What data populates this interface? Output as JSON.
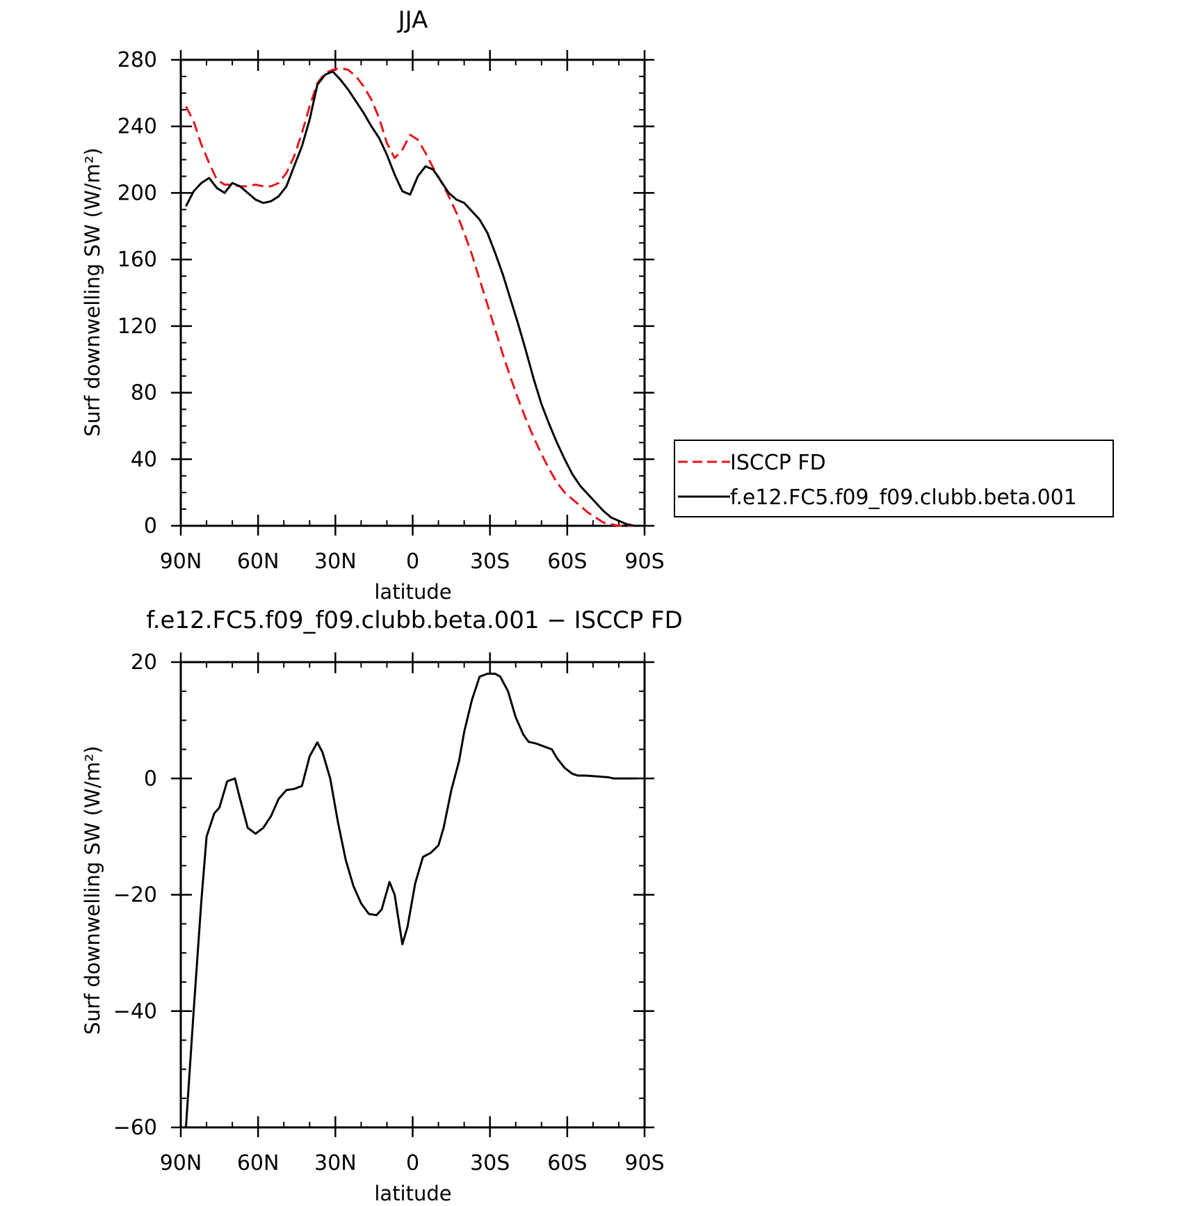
{
  "chart_data": [
    {
      "type": "line",
      "title": "JJA",
      "xlabel": "latitude",
      "ylabel": "Surf downwelling SW (W/m²)",
      "xlim": [
        90,
        -90
      ],
      "ylim": [
        0,
        280
      ],
      "x_ticks": [
        {
          "value": 90,
          "label": "90N"
        },
        {
          "value": 60,
          "label": "60N"
        },
        {
          "value": 30,
          "label": "30N"
        },
        {
          "value": 0,
          "label": "0"
        },
        {
          "value": -30,
          "label": "30S"
        },
        {
          "value": -60,
          "label": "60S"
        },
        {
          "value": -90,
          "label": "90S"
        }
      ],
      "y_ticks": [
        {
          "value": 0,
          "label": "0"
        },
        {
          "value": 40,
          "label": "40"
        },
        {
          "value": 80,
          "label": "80"
        },
        {
          "value": 120,
          "label": "120"
        },
        {
          "value": 160,
          "label": "160"
        },
        {
          "value": 200,
          "label": "200"
        },
        {
          "value": 240,
          "label": "240"
        },
        {
          "value": 280,
          "label": "280"
        }
      ],
      "legend_position": "right",
      "series": [
        {
          "name": "ISCCP FD",
          "color": "#e8141b",
          "dash": true,
          "x": [
            88,
            85,
            82,
            79,
            76,
            73,
            70,
            67,
            64,
            61,
            58,
            55,
            52,
            49,
            46,
            43,
            40,
            37,
            34,
            31,
            28,
            25,
            22,
            19,
            16,
            13,
            10,
            7,
            4,
            1,
            -2,
            -5,
            -8,
            -11,
            -14,
            -17,
            -20,
            -23,
            -26,
            -29,
            -32,
            -35,
            -38,
            -41,
            -44,
            -47,
            -50,
            -53,
            -56,
            -59,
            -62,
            -65,
            -68,
            -71,
            -74,
            -77,
            -80,
            -83,
            -86,
            -89
          ],
          "y": [
            252,
            243,
            229,
            218,
            208,
            205,
            205,
            204,
            204,
            205,
            204,
            204,
            206,
            212,
            222,
            236,
            252,
            266,
            272,
            274,
            275,
            274,
            270,
            264,
            256,
            245,
            230,
            221,
            226,
            235,
            232,
            224,
            215,
            207,
            198,
            188,
            176,
            163,
            148,
            133,
            118,
            103,
            89,
            76,
            64,
            53,
            43,
            34,
            26,
            20,
            16,
            12,
            8,
            5,
            2,
            1,
            0,
            0,
            0,
            0
          ]
        },
        {
          "name": "f.e12.FC5.f09_f09.clubb.beta.001",
          "color": "#000000",
          "dash": false,
          "x": [
            88,
            85,
            82,
            79,
            76,
            73,
            70,
            67,
            64,
            61,
            58,
            55,
            52,
            49,
            46,
            43,
            40,
            37,
            34,
            31,
            28,
            25,
            22,
            19,
            16,
            13,
            10,
            7,
            4,
            1,
            -2,
            -5,
            -8,
            -11,
            -14,
            -17,
            -20,
            -23,
            -26,
            -29,
            -32,
            -35,
            -38,
            -41,
            -44,
            -47,
            -50,
            -53,
            -56,
            -59,
            -62,
            -65,
            -68,
            -71,
            -74,
            -77,
            -80,
            -83,
            -86,
            -89
          ],
          "y": [
            192,
            201,
            206,
            209,
            203,
            200,
            206,
            204,
            200,
            196,
            194,
            195,
            198,
            204,
            216,
            228,
            244,
            265,
            271,
            273,
            268,
            262,
            255,
            248,
            240,
            233,
            223,
            211,
            201,
            199,
            210,
            216,
            214,
            207,
            200,
            196,
            194,
            189,
            184,
            176,
            164,
            151,
            136,
            121,
            105,
            88,
            73,
            61,
            50,
            40,
            31,
            24,
            19,
            14,
            9,
            5,
            3,
            1,
            0,
            0
          ]
        }
      ]
    },
    {
      "type": "line",
      "title": "f.e12.FC5.f09_f09.clubb.beta.001 − ISCCP FD",
      "xlabel": "latitude",
      "ylabel": "Surf downwelling SW (W/m²)",
      "xlim": [
        90,
        -90
      ],
      "ylim": [
        -60,
        20
      ],
      "x_ticks": [
        {
          "value": 90,
          "label": "90N"
        },
        {
          "value": 60,
          "label": "60N"
        },
        {
          "value": 30,
          "label": "30N"
        },
        {
          "value": 0,
          "label": "0"
        },
        {
          "value": -30,
          "label": "30S"
        },
        {
          "value": -60,
          "label": "60S"
        },
        {
          "value": -90,
          "label": "90S"
        }
      ],
      "y_ticks": [
        {
          "value": -60,
          "label": "−60"
        },
        {
          "value": -40,
          "label": "−40"
        },
        {
          "value": -20,
          "label": "−20"
        },
        {
          "value": 0,
          "label": "0"
        },
        {
          "value": 20,
          "label": "20"
        }
      ],
      "series": [
        {
          "color": "#000000",
          "dash": false,
          "x": [
            88,
            85,
            82,
            80,
            77,
            75,
            72,
            69,
            67,
            64,
            61,
            58,
            55,
            52,
            49,
            46,
            43,
            40,
            37,
            35,
            32,
            29,
            26,
            23,
            20,
            17,
            14,
            12,
            9,
            7,
            4,
            2,
            -1,
            -4,
            -7,
            -10,
            -12,
            -15,
            -18,
            -20,
            -23,
            -26,
            -29,
            -32,
            -34,
            -37,
            -40,
            -43,
            -45,
            -48,
            -51,
            -54,
            -56,
            -59,
            -62,
            -64,
            -67,
            -70,
            -73,
            -76,
            -78,
            -81,
            -84,
            -87
          ],
          "y": [
            -60,
            -40,
            -21,
            -10,
            -6,
            -5,
            -0.5,
            0,
            -3.5,
            -8.5,
            -9.5,
            -8.5,
            -6.5,
            -3.5,
            -2,
            -1.8,
            -1.3,
            3.8,
            6.2,
            4.5,
            0,
            -7.5,
            -14,
            -18.5,
            -21.5,
            -23.3,
            -23.5,
            -22.5,
            -17.8,
            -20,
            -28.5,
            -25.5,
            -18,
            -13.5,
            -12.8,
            -11.5,
            -8.5,
            -2,
            3,
            8,
            13.5,
            17.5,
            18,
            18,
            17.5,
            15,
            10.5,
            7.5,
            6.3,
            6,
            5.5,
            5,
            3.5,
            1.8,
            0.8,
            0.5,
            0.5,
            0.4,
            0.3,
            0.2,
            0,
            0,
            0,
            0
          ]
        }
      ]
    }
  ]
}
